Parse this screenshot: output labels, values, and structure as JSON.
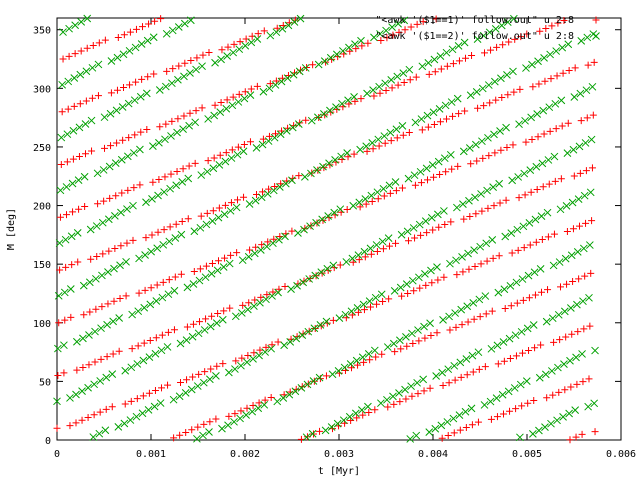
{
  "chart_data": {
    "type": "scatter",
    "title": "",
    "xlabel": "t [Myr]",
    "ylabel": "M [deg]",
    "xlim": [
      0,
      0.006
    ],
    "ylim": [
      0,
      360
    ],
    "x_ticks": [
      "0",
      "0.001",
      "0.002",
      "0.003",
      "0.004",
      "0.005",
      "0.006"
    ],
    "y_ticks": [
      "0",
      "50",
      "100",
      "150",
      "200",
      "250",
      "300",
      "350"
    ],
    "grid": false,
    "legend_position": "top-right",
    "series": [
      {
        "name": "\"<awk '($1==1)' follow.out\" u 2:8",
        "marker": "plus",
        "color": "#ff0000",
        "x_start": 0.0,
        "x_step": 7.35e-05,
        "count": 78,
        "y_start": 10,
        "y_step": 47.3,
        "stripes": 8
      },
      {
        "name": "\"<awk '($1==2)' follow.out\" u 2:8",
        "marker": "cross",
        "color": "#00a000",
        "x_start": 0.0,
        "x_step": 7.35e-05,
        "count": 78,
        "y_start": 33,
        "y_step": 47.9,
        "stripes": 8
      }
    ]
  }
}
